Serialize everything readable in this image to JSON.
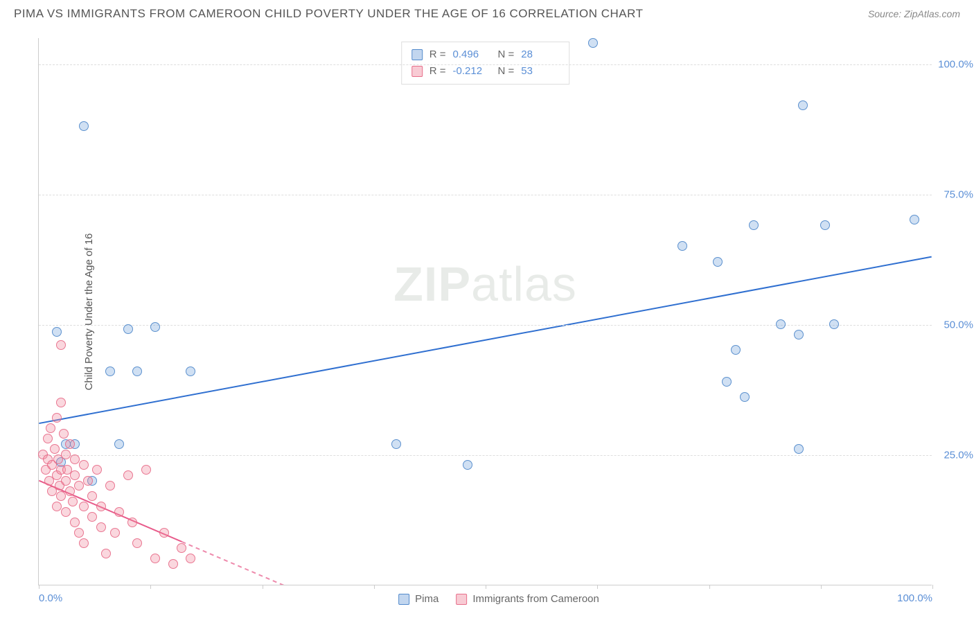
{
  "header": {
    "title": "PIMA VS IMMIGRANTS FROM CAMEROON CHILD POVERTY UNDER THE AGE OF 16 CORRELATION CHART",
    "source": "Source: ZipAtlas.com"
  },
  "chart": {
    "type": "scatter",
    "y_axis_label": "Child Poverty Under the Age of 16",
    "xlim": [
      0,
      100
    ],
    "ylim": [
      0,
      105
    ],
    "y_ticks": [
      25,
      50,
      75,
      100
    ],
    "y_tick_labels": [
      "25.0%",
      "50.0%",
      "75.0%",
      "100.0%"
    ],
    "x_ticks": [
      0,
      12.5,
      25,
      37.5,
      50,
      62.5,
      75,
      87.5,
      100
    ],
    "x_tick_labels": {
      "0": "0.0%",
      "100": "100.0%"
    },
    "grid_color": "#dddddd",
    "background_color": "#ffffff",
    "marker_radius": 7,
    "watermark": "ZIPatlas",
    "series": [
      {
        "name": "Pima",
        "color_fill": "rgba(120,165,220,0.35)",
        "color_stroke": "rgba(70,130,200,0.85)",
        "r": "0.496",
        "n": "28",
        "trend": {
          "x1": 0,
          "y1": 31,
          "x2": 100,
          "y2": 63,
          "solid_until": 100,
          "color": "#2f6fd0",
          "width": 2
        },
        "points": [
          [
            2,
            48.5
          ],
          [
            2.5,
            23.5
          ],
          [
            3,
            27
          ],
          [
            4,
            27
          ],
          [
            5,
            88
          ],
          [
            6,
            20
          ],
          [
            8,
            41
          ],
          [
            9,
            27
          ],
          [
            10,
            49
          ],
          [
            11,
            41
          ],
          [
            13,
            49.5
          ],
          [
            17,
            41
          ],
          [
            40,
            27
          ],
          [
            48,
            23
          ],
          [
            62,
            104
          ],
          [
            72,
            65
          ],
          [
            76,
            62
          ],
          [
            77,
            39
          ],
          [
            78,
            45
          ],
          [
            79,
            36
          ],
          [
            80,
            69
          ],
          [
            83,
            50
          ],
          [
            85,
            48
          ],
          [
            85,
            26
          ],
          [
            85.5,
            92
          ],
          [
            88,
            69
          ],
          [
            89,
            50
          ],
          [
            98,
            70
          ]
        ]
      },
      {
        "name": "Immigrants from Cameroon",
        "color_fill": "rgba(240,140,160,0.35)",
        "color_stroke": "rgba(230,100,130,0.85)",
        "r": "-0.212",
        "n": "53",
        "trend": {
          "x1": 0,
          "y1": 20,
          "x2": 30,
          "y2": -2,
          "solid_until": 16,
          "color": "#e85a8a",
          "width": 2
        },
        "points": [
          [
            0.5,
            25
          ],
          [
            0.8,
            22
          ],
          [
            1,
            28
          ],
          [
            1,
            24
          ],
          [
            1.2,
            20
          ],
          [
            1.3,
            30
          ],
          [
            1.5,
            23
          ],
          [
            1.5,
            18
          ],
          [
            1.8,
            26
          ],
          [
            2,
            21
          ],
          [
            2,
            32
          ],
          [
            2,
            15
          ],
          [
            2.2,
            24
          ],
          [
            2.3,
            19
          ],
          [
            2.5,
            35
          ],
          [
            2.5,
            22
          ],
          [
            2.5,
            17
          ],
          [
            2.5,
            46
          ],
          [
            2.8,
            29
          ],
          [
            3,
            20
          ],
          [
            3,
            25
          ],
          [
            3,
            14
          ],
          [
            3.2,
            22
          ],
          [
            3.5,
            18
          ],
          [
            3.5,
            27
          ],
          [
            3.8,
            16
          ],
          [
            4,
            21
          ],
          [
            4,
            12
          ],
          [
            4,
            24
          ],
          [
            4.5,
            19
          ],
          [
            4.5,
            10
          ],
          [
            5,
            23
          ],
          [
            5,
            15
          ],
          [
            5,
            8
          ],
          [
            5.5,
            20
          ],
          [
            6,
            13
          ],
          [
            6,
            17
          ],
          [
            6.5,
            22
          ],
          [
            7,
            11
          ],
          [
            7,
            15
          ],
          [
            7.5,
            6
          ],
          [
            8,
            19
          ],
          [
            8.5,
            10
          ],
          [
            9,
            14
          ],
          [
            10,
            21
          ],
          [
            10.5,
            12
          ],
          [
            11,
            8
          ],
          [
            12,
            22
          ],
          [
            13,
            5
          ],
          [
            14,
            10
          ],
          [
            15,
            4
          ],
          [
            16,
            7
          ],
          [
            17,
            5
          ]
        ]
      }
    ],
    "legend": {
      "r_label": "R =",
      "n_label": "N ="
    }
  }
}
